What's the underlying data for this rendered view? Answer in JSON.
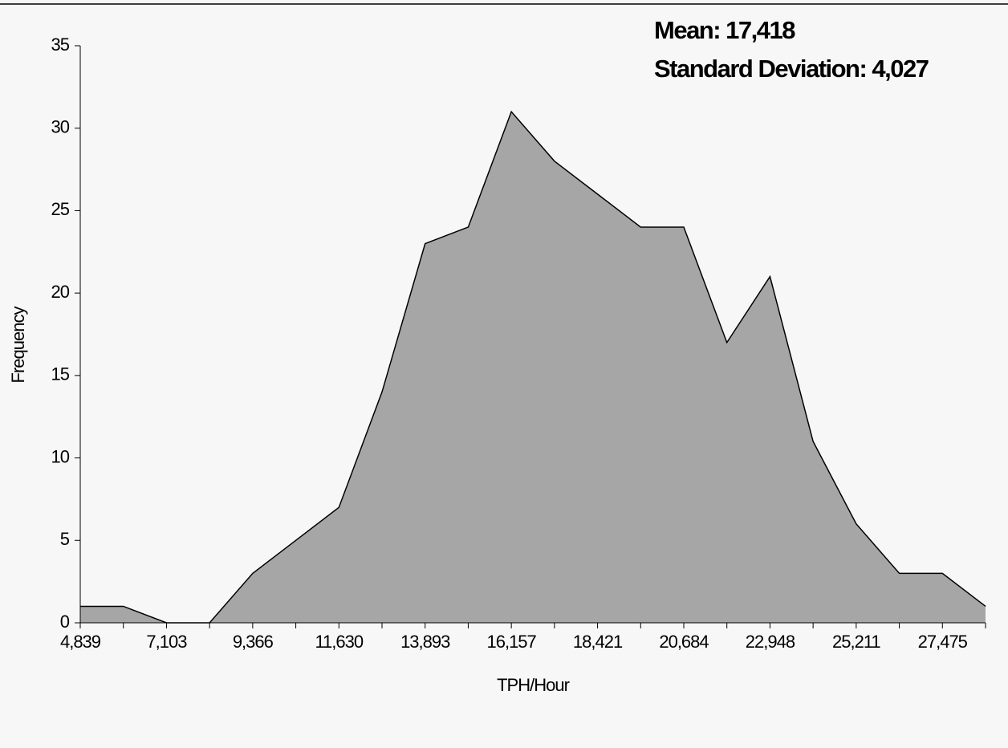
{
  "chart_data": {
    "type": "area",
    "annotations": [
      "Mean: 17,418",
      "Standard Deviation: 4,027"
    ],
    "x_label": "TPH/Hour",
    "y_label": "Frequency",
    "categories": [
      "4,839",
      null,
      "7,103",
      null,
      "9,366",
      null,
      "11,630",
      null,
      "13,893",
      null,
      "16,157",
      null,
      "18,421",
      null,
      "20,684",
      null,
      "22,948",
      null,
      "25,211",
      null,
      "27,475",
      null
    ],
    "values": [
      1,
      1,
      0,
      0,
      3,
      5,
      7,
      14,
      23,
      24,
      31,
      28,
      26,
      24,
      24,
      17,
      21,
      11,
      6,
      3,
      3,
      1
    ],
    "color": "#a6a6a6",
    "ylim": [
      0,
      35
    ],
    "yticks": [
      0,
      5,
      10,
      15,
      20,
      25,
      30,
      35
    ]
  }
}
